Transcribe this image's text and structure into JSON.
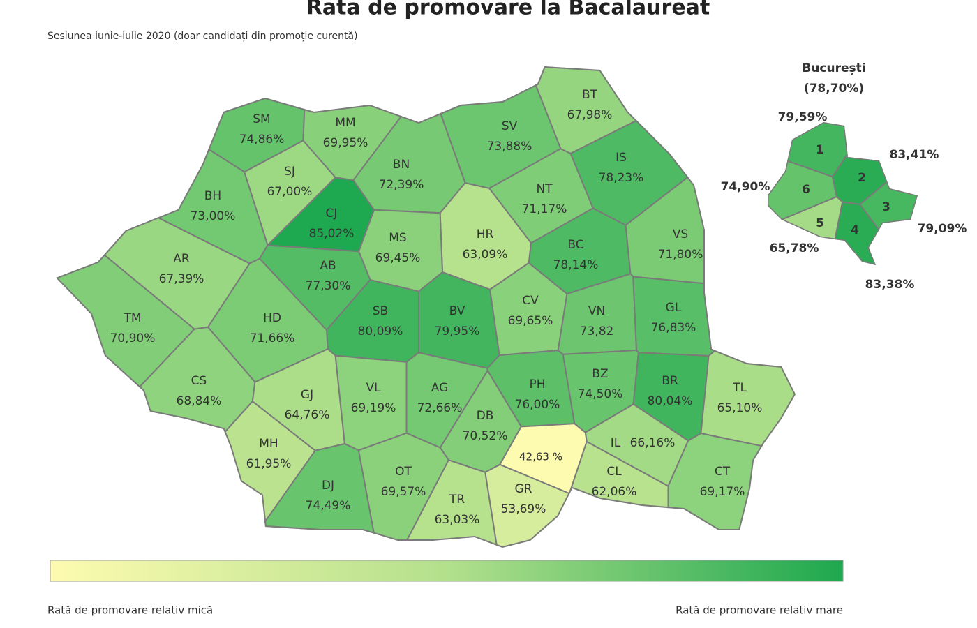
{
  "title": "Rata de promovare la Bacalaureat",
  "subtitle": "Sesiunea iunie-iulie 2020 (doar candidați din promoție curentă)",
  "scale_colors": [
    "#fdfbb0",
    "#b3e08c",
    "#1ea84f"
  ],
  "border_color": "#7a7a7a",
  "regions": [
    {
      "code": "SM",
      "value": 74.86,
      "value_label": "74,86%"
    },
    {
      "code": "MM",
      "value": 69.95,
      "value_label": "69,95%"
    },
    {
      "code": "BT",
      "value": 67.98,
      "value_label": "67,98%"
    },
    {
      "code": "SV",
      "value": 73.88,
      "value_label": "73,88%"
    },
    {
      "code": "SJ",
      "value": 67.0,
      "value_label": "67,00%"
    },
    {
      "code": "BN",
      "value": 72.39,
      "value_label": "72,39%"
    },
    {
      "code": "IS",
      "value": 78.23,
      "value_label": "78,23%"
    },
    {
      "code": "BH",
      "value": 73.0,
      "value_label": "73,00%"
    },
    {
      "code": "CJ",
      "value": 85.02,
      "value_label": "85,02%"
    },
    {
      "code": "NT",
      "value": 71.17,
      "value_label": "71,17%"
    },
    {
      "code": "HR",
      "value": 63.09,
      "value_label": "63,09%"
    },
    {
      "code": "MS",
      "value": 69.45,
      "value_label": "69,45%"
    },
    {
      "code": "BC",
      "value": 78.14,
      "value_label": "78,14%"
    },
    {
      "code": "VS",
      "value": 71.8,
      "value_label": "71,80%"
    },
    {
      "code": "AR",
      "value": 67.39,
      "value_label": "67,39%"
    },
    {
      "code": "AB",
      "value": 77.3,
      "value_label": "77,30%"
    },
    {
      "code": "SB",
      "value": 80.09,
      "value_label": "80,09%"
    },
    {
      "code": "BV",
      "value": 79.95,
      "value_label": "79,95%"
    },
    {
      "code": "CV",
      "value": 69.65,
      "value_label": "69,65%"
    },
    {
      "code": "VN",
      "value": 73.82,
      "value_label": "73,82"
    },
    {
      "code": "GL",
      "value": 76.83,
      "value_label": "76,83%"
    },
    {
      "code": "TM",
      "value": 70.9,
      "value_label": "70,90%"
    },
    {
      "code": "HD",
      "value": 71.66,
      "value_label": "71,66%"
    },
    {
      "code": "CS",
      "value": 68.84,
      "value_label": "68,84%"
    },
    {
      "code": "GJ",
      "value": 64.76,
      "value_label": "64,76%"
    },
    {
      "code": "VL",
      "value": 69.19,
      "value_label": "69,19%"
    },
    {
      "code": "AG",
      "value": 72.66,
      "value_label": "72,66%"
    },
    {
      "code": "PH",
      "value": 76.0,
      "value_label": "76,00%"
    },
    {
      "code": "BZ",
      "value": 74.5,
      "value_label": "74,50%"
    },
    {
      "code": "BR",
      "value": 80.04,
      "value_label": "80,04%"
    },
    {
      "code": "TL",
      "value": 65.1,
      "value_label": "65,10%"
    },
    {
      "code": "DB",
      "value": 70.52,
      "value_label": "70,52%"
    },
    {
      "code": "MH",
      "value": 61.95,
      "value_label": "61,95%"
    },
    {
      "code": "IL",
      "value": 66.16,
      "value_label": "66,16%"
    },
    {
      "value": 42.63,
      "value_label": "42,63 %"
    },
    {
      "code": "DJ",
      "value": 74.49,
      "value_label": "74,49%"
    },
    {
      "code": "OT",
      "value": 69.57,
      "value_label": "69,57%"
    },
    {
      "code": "TR",
      "value": 63.03,
      "value_label": "63,03%"
    },
    {
      "code": "GR",
      "value": 53.69,
      "value_label": "53,69%"
    },
    {
      "code": "CL",
      "value": 62.06,
      "value_label": "62,06%"
    },
    {
      "code": "CT",
      "value": 69.17,
      "value_label": "69,17%"
    }
  ],
  "bucharest": {
    "title": "București",
    "total": 78.7,
    "total_label": "(78,70%)",
    "sectors": [
      {
        "label": "1",
        "value": 79.59,
        "value_label": "79,59%"
      },
      {
        "label": "2",
        "value": 83.41,
        "value_label": "83,41%"
      },
      {
        "label": "3",
        "value": 79.09,
        "value_label": "79,09%"
      },
      {
        "label": "4",
        "value": 83.38,
        "value_label": "83,38%"
      },
      {
        "label": "5",
        "value": 65.78,
        "value_label": "65,78%"
      },
      {
        "label": "6",
        "value": 74.9,
        "value_label": "74,90%"
      }
    ]
  },
  "legend": {
    "low": "Rată de promovare relativ mică",
    "high": "Rată de promovare relativ mare"
  }
}
